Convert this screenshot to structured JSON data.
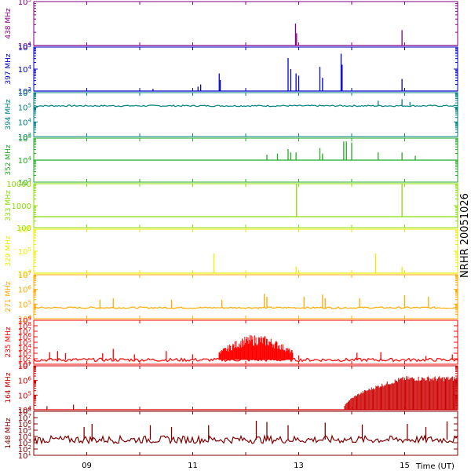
{
  "chart_data": {
    "type": "line",
    "side_title": "NRHR 20051026",
    "xlabel": "Time (UT)",
    "xlim": [
      8.0,
      16.0
    ],
    "x_ticks": [
      {
        "value": 9,
        "label": "09"
      },
      {
        "value": 11,
        "label": "11"
      },
      {
        "value": 13,
        "label": "13"
      },
      {
        "value": 15,
        "label": "15"
      }
    ],
    "panels": [
      {
        "label": "438 MHz",
        "color": "#800080",
        "ymin_exp": 4,
        "ymax_exp": 5,
        "ticks": [
          {
            "exp": 4,
            "label": "10",
            "sup": "4"
          },
          {
            "exp": 5,
            "label": "10",
            "sup": "5"
          }
        ],
        "baseline_exp": 4.0,
        "noise": 0.0,
        "spikes": [
          [
            12.94,
            4.5
          ],
          [
            12.96,
            4.28
          ],
          [
            14.95,
            4.35
          ]
        ]
      },
      {
        "label": "397 MHz",
        "color": "#0000cc",
        "ymin_exp": 3,
        "ymax_exp": 5,
        "ticks": [
          {
            "exp": 3,
            "label": "10",
            "sup": "3"
          },
          {
            "exp": 4,
            "label": "10",
            "sup": "4"
          },
          {
            "exp": 5,
            "label": "10",
            "sup": "5"
          }
        ],
        "baseline_exp": 3.0,
        "noise": 0.0,
        "spikes": [
          [
            10.25,
            3.1
          ],
          [
            11.1,
            3.2
          ],
          [
            11.15,
            3.3
          ],
          [
            11.5,
            3.8
          ],
          [
            11.52,
            3.5
          ],
          [
            12.8,
            4.5
          ],
          [
            12.85,
            4.0
          ],
          [
            12.95,
            3.8
          ],
          [
            13.0,
            3.7
          ],
          [
            13.4,
            4.1
          ],
          [
            13.45,
            3.6
          ],
          [
            13.8,
            4.7
          ],
          [
            13.82,
            4.2
          ],
          [
            14.95,
            3.55
          ]
        ]
      },
      {
        "label": "394 MHz",
        "color": "#008080",
        "ymin_exp": 3,
        "ymax_exp": 6,
        "ticks": [
          {
            "exp": 3,
            "label": "10",
            "sup": "3"
          },
          {
            "exp": 4,
            "label": "10",
            "sup": "4"
          },
          {
            "exp": 5,
            "label": "10",
            "sup": "5"
          },
          {
            "exp": 6,
            "label": "10",
            "sup": "6"
          }
        ],
        "baseline_exp": 5.1,
        "noise": 0.05,
        "spikes": [
          [
            14.5,
            5.45
          ],
          [
            14.95,
            5.55
          ],
          [
            15.1,
            5.35
          ]
        ]
      },
      {
        "label": "352 MHz",
        "color": "#22aa22",
        "ymin_exp": 3,
        "ymax_exp": 5,
        "ticks": [
          {
            "exp": 3,
            "label": "10",
            "sup": "3"
          },
          {
            "exp": 4,
            "label": "10",
            "sup": "4"
          },
          {
            "exp": 5,
            "label": "10",
            "sup": "5"
          }
        ],
        "baseline_exp": 4.0,
        "noise": 0.0,
        "spikes": [
          [
            12.4,
            4.25
          ],
          [
            12.6,
            4.3
          ],
          [
            12.8,
            4.5
          ],
          [
            12.85,
            4.35
          ],
          [
            12.95,
            4.35
          ],
          [
            13.4,
            4.55
          ],
          [
            13.45,
            4.3
          ],
          [
            13.85,
            4.85
          ],
          [
            13.9,
            4.85
          ],
          [
            14.0,
            4.8
          ],
          [
            14.5,
            4.35
          ],
          [
            14.95,
            4.35
          ],
          [
            15.2,
            4.2
          ]
        ]
      },
      {
        "label": "333 MHz",
        "color": "#88dd00",
        "ymin_exp": 2,
        "ymax_exp": 4,
        "ticks": [
          {
            "exp": 2,
            "label": "100"
          },
          {
            "exp": 3,
            "label": "1000"
          },
          {
            "exp": 4,
            "label": "10000"
          }
        ],
        "baseline_exp": 2.5,
        "noise": 0.0,
        "spikes": [
          [
            12.96,
            4.0
          ],
          [
            14.95,
            4.0
          ]
        ]
      },
      {
        "label": "329 MHz",
        "color": "#eeee00",
        "ymin_exp": 4,
        "ymax_exp": 6,
        "ticks": [
          {
            "exp": 4,
            "label": "10",
            "sup": "4"
          },
          {
            "exp": 5,
            "label": "10",
            "sup": "5"
          },
          {
            "exp": 6,
            "label": "10",
            "sup": "6"
          }
        ],
        "baseline_exp": 4.0,
        "noise": 0.0,
        "spikes": [
          [
            11.4,
            4.9
          ],
          [
            12.95,
            4.3
          ],
          [
            14.45,
            4.9
          ],
          [
            14.95,
            4.3
          ]
        ]
      },
      {
        "label": "271 MHz",
        "color": "#ffaa00",
        "ymin_exp": 4,
        "ymax_exp": 7,
        "ticks": [
          {
            "exp": 4,
            "label": "10",
            "sup": "4"
          },
          {
            "exp": 5,
            "label": "10",
            "sup": "5"
          },
          {
            "exp": 6,
            "label": "10",
            "sup": "6"
          },
          {
            "exp": 7,
            "label": "10",
            "sup": "7"
          }
        ],
        "baseline_exp": 4.75,
        "noise": 0.06,
        "spikes": [
          [
            9.25,
            5.3
          ],
          [
            9.5,
            5.4
          ],
          [
            10.6,
            5.3
          ],
          [
            11.55,
            5.3
          ],
          [
            12.35,
            5.7
          ],
          [
            12.4,
            5.5
          ],
          [
            13.1,
            5.5
          ],
          [
            13.45,
            5.65
          ],
          [
            13.5,
            5.4
          ],
          [
            14.15,
            5.4
          ],
          [
            15.0,
            5.6
          ],
          [
            15.45,
            5.5
          ]
        ]
      },
      {
        "label": "235 MHz",
        "color": "#ff0000",
        "ymin_exp": 1,
        "ymax_exp": 9,
        "ticks": [
          {
            "exp": 1,
            "label": "10",
            "sup": "1"
          },
          {
            "exp": 2,
            "label": "10",
            "sup": "2"
          },
          {
            "exp": 3,
            "label": "10",
            "sup": "3"
          },
          {
            "exp": 4,
            "label": "10",
            "sup": "4"
          },
          {
            "exp": 5,
            "label": "10",
            "sup": "5"
          },
          {
            "exp": 6,
            "label": "10",
            "sup": "6"
          },
          {
            "exp": 7,
            "label": "10",
            "sup": "7"
          },
          {
            "exp": 8,
            "label": "10",
            "sup": "8"
          },
          {
            "exp": 9,
            "label": "10",
            "sup": "9"
          }
        ],
        "baseline_exp": 1.8,
        "noise": 0.3,
        "spikes": [
          [
            8.3,
            3.2
          ],
          [
            8.45,
            3.4
          ],
          [
            8.6,
            3.0
          ],
          [
            9.3,
            3.0
          ],
          [
            9.5,
            3.8
          ],
          [
            9.9,
            2.8
          ],
          [
            10.5,
            3.4
          ],
          [
            11.0,
            2.8
          ],
          [
            11.5,
            3.2
          ],
          [
            13.0,
            2.6
          ],
          [
            14.1,
            3.1
          ],
          [
            14.55,
            3.2
          ],
          [
            15.4,
            2.5
          ],
          [
            15.9,
            2.8
          ]
        ],
        "bursts": [
          {
            "start": 11.5,
            "end": 12.9,
            "peak_exp": 6.4
          }
        ]
      },
      {
        "label": "164 MHz",
        "color": "#cc0000",
        "ymin_exp": 4,
        "ymax_exp": 7,
        "ticks": [
          {
            "exp": 4,
            "label": "10",
            "sup": "4"
          },
          {
            "exp": 5,
            "label": "10",
            "sup": "5"
          },
          {
            "exp": 6,
            "label": "10",
            "sup": "6"
          },
          {
            "exp": 7,
            "label": "10",
            "sup": "7"
          }
        ],
        "baseline_exp": 4.0,
        "noise": 0.0,
        "spikes": [
          [
            8.25,
            4.25
          ],
          [
            8.75,
            4.35
          ]
        ],
        "ramp": {
          "start": 13.85,
          "plateau_start": 15.0,
          "end": 16.0,
          "plateau_exp": 6.3
        }
      },
      {
        "label": "148 MHz",
        "color": "#800000",
        "ymin_exp": 1,
        "ymax_exp": 8,
        "ticks": [
          {
            "exp": 1,
            "label": "10",
            "sup": "1"
          },
          {
            "exp": 2,
            "label": "10",
            "sup": "2"
          },
          {
            "exp": 3,
            "label": "10",
            "sup": "3"
          },
          {
            "exp": 4,
            "label": "10",
            "sup": "4"
          },
          {
            "exp": 5,
            "label": "10",
            "sup": "5"
          },
          {
            "exp": 6,
            "label": "10",
            "sup": "6"
          },
          {
            "exp": 7,
            "label": "10",
            "sup": "7"
          },
          {
            "exp": 8,
            "label": "10",
            "sup": "8"
          }
        ],
        "baseline_exp": 3.5,
        "noise": 0.6,
        "spikes": [
          [
            8.95,
            5.5
          ],
          [
            9.1,
            6.0
          ],
          [
            10.2,
            5.8
          ],
          [
            10.6,
            5.5
          ],
          [
            11.3,
            5.8
          ],
          [
            12.2,
            6.5
          ],
          [
            12.4,
            6.3
          ],
          [
            12.8,
            5.8
          ],
          [
            13.5,
            6.2
          ],
          [
            14.2,
            5.9
          ],
          [
            15.05,
            6.0
          ],
          [
            15.4,
            5.5
          ],
          [
            15.8,
            6.4
          ]
        ]
      }
    ]
  }
}
